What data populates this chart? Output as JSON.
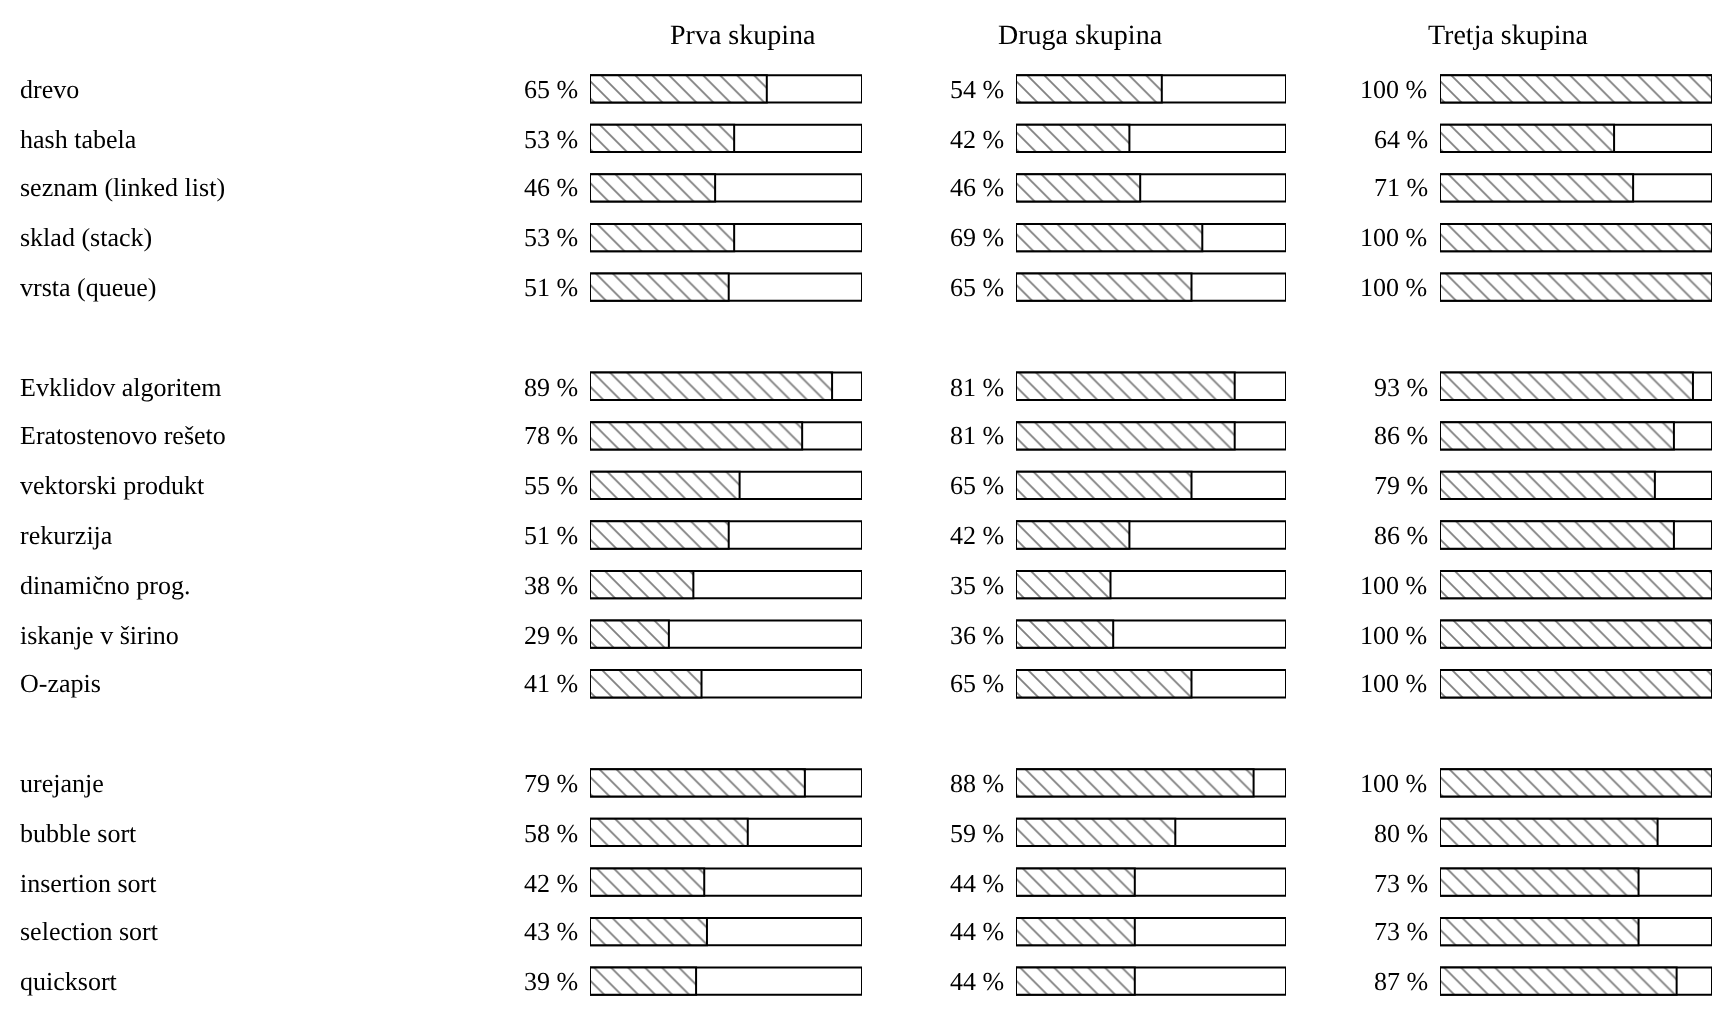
{
  "chart_data": [
    {
      "type": "bar",
      "orientation": "horizontal",
      "title": "Prva skupina",
      "tick_labels": "y",
      "xlim": [
        0,
        100
      ],
      "categories": [
        "drevo",
        "hash tabela",
        "seznam (linked list)",
        "sklad (stack)",
        "vrsta (queue)",
        null,
        "Evklidov algoritem",
        "Eratostenovo rešeto",
        "vektorski produkt",
        "rekurzija",
        "dinamično prog.",
        "iskanje v širino",
        "O-zapis",
        null,
        "urejanje",
        "bubble sort",
        "insertion sort",
        "selection sort",
        "quicksort"
      ],
      "series": [
        {
          "color": "#000000",
          "values": [
            65,
            53,
            46,
            53,
            51,
            null,
            89,
            78,
            55,
            51,
            38,
            29,
            41,
            null,
            79,
            58,
            42,
            43,
            39
          ],
          "value_labels": [
            "65 %",
            "53 %",
            "46 %",
            "53 %",
            "51 %",
            null,
            "89 %",
            "78 %",
            "55 %",
            "51 %",
            "38 %",
            "29 %",
            "41 %",
            null,
            "79 %",
            "58 %",
            "42 %",
            "43 %",
            "39 %"
          ]
        }
      ]
    },
    {
      "type": "bar",
      "orientation": "horizontal",
      "title": "Druga skupina",
      "tick_labels": false,
      "xlim": [
        0,
        100
      ],
      "series": [
        {
          "color": "#000000",
          "values": [
            54,
            42,
            46,
            69,
            65,
            null,
            81,
            81,
            65,
            42,
            35,
            36,
            65,
            null,
            88,
            59,
            44,
            44,
            44
          ],
          "value_labels": [
            "54 %",
            "42 %",
            "46 %",
            "69 %",
            "65 %",
            null,
            "81 %",
            "81 %",
            "65 %",
            "42 %",
            "35 %",
            "36 %",
            "65 %",
            null,
            "88 %",
            "59 %",
            "44 %",
            "44 %",
            "44 %"
          ]
        }
      ]
    },
    {
      "type": "bar",
      "orientation": "horizontal",
      "title": "Tretja skupina",
      "tick_labels": false,
      "xlim": [
        0,
        100
      ],
      "series": [
        {
          "color": "#000000",
          "values": [
            100,
            64,
            71,
            100,
            100,
            null,
            93,
            86,
            79,
            86,
            100,
            100,
            100,
            null,
            100,
            80,
            73,
            73,
            87
          ],
          "value_labels": [
            "100 %",
            "64 %",
            "71 %",
            "100 %",
            "100 %",
            null,
            "93 %",
            "86 %",
            "79 %",
            "86 %",
            "100 %",
            "100 %",
            "100 %",
            null,
            "100 %",
            "80 %",
            "73 %",
            "73 %",
            "87 %"
          ]
        }
      ]
    }
  ]
}
